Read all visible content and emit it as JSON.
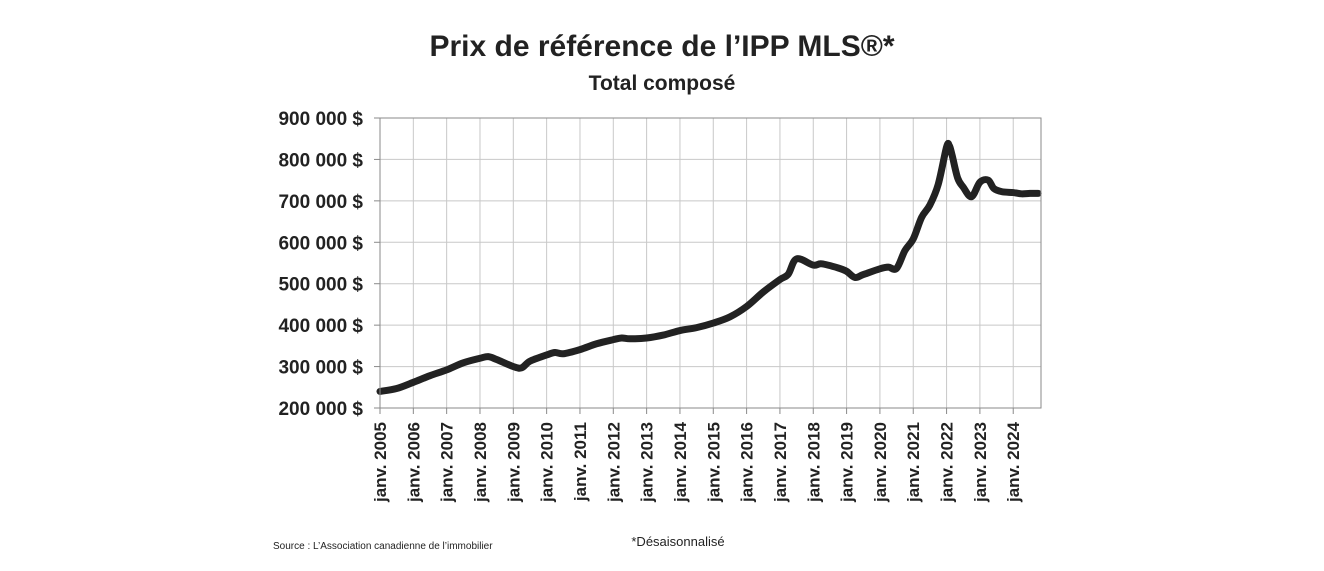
{
  "chart_data": {
    "type": "line",
    "title": "Prix de référence de l’IPP MLS®*",
    "subtitle": "Total composé",
    "xlabel": "",
    "ylabel": "",
    "ylim": [
      200000,
      900000
    ],
    "y_ticks": [
      200000,
      300000,
      400000,
      500000,
      600000,
      700000,
      800000,
      900000
    ],
    "y_tick_labels": [
      "200 000 $",
      "300 000 $",
      "400 000 $",
      "500 000 $",
      "600 000 $",
      "700 000 $",
      "800 000 $",
      "900 000 $"
    ],
    "x_range": [
      "2005-01",
      "2024-10"
    ],
    "x_ticks": [
      "2005-01",
      "2006-01",
      "2007-01",
      "2008-01",
      "2009-01",
      "2010-01",
      "2011-01",
      "2012-01",
      "2013-01",
      "2014-01",
      "2015-01",
      "2016-01",
      "2017-01",
      "2018-01",
      "2019-01",
      "2020-01",
      "2021-01",
      "2022-01",
      "2023-01",
      "2024-01"
    ],
    "x_tick_labels": [
      "janv. 2005",
      "janv. 2006",
      "janv. 2007",
      "janv. 2008",
      "janv. 2009",
      "janv. 2010",
      "janv. 2011",
      "janv. 2012",
      "janv. 2013",
      "janv. 2014",
      "janv. 2015",
      "janv. 2016",
      "janv. 2017",
      "janv. 2018",
      "janv. 2019",
      "janv. 2020",
      "janv. 2021",
      "janv. 2022",
      "janv. 2023",
      "janv. 2024"
    ],
    "grid": true,
    "series": [
      {
        "name": "",
        "color": "#222222",
        "x": [
          "2005-01",
          "2005-07",
          "2006-01",
          "2006-07",
          "2007-01",
          "2007-07",
          "2008-01",
          "2008-04",
          "2008-07",
          "2009-01",
          "2009-04",
          "2009-07",
          "2010-01",
          "2010-04",
          "2010-07",
          "2011-01",
          "2011-07",
          "2012-01",
          "2012-04",
          "2012-07",
          "2013-01",
          "2013-07",
          "2014-01",
          "2014-07",
          "2015-01",
          "2015-07",
          "2016-01",
          "2016-07",
          "2017-01",
          "2017-04",
          "2017-07",
          "2018-01",
          "2018-04",
          "2018-10",
          "2019-01",
          "2019-04",
          "2019-07",
          "2020-01",
          "2020-04",
          "2020-07",
          "2020-10",
          "2021-01",
          "2021-04",
          "2021-07",
          "2021-10",
          "2022-01",
          "2022-02",
          "2022-03",
          "2022-05",
          "2022-07",
          "2022-10",
          "2023-01",
          "2023-04",
          "2023-06",
          "2023-09",
          "2024-01",
          "2024-04",
          "2024-07",
          "2024-10"
        ],
        "values": [
          240000,
          247000,
          262000,
          278000,
          292000,
          309000,
          320000,
          324000,
          317000,
          300000,
          297000,
          313000,
          328000,
          334000,
          331000,
          341000,
          355000,
          365000,
          369000,
          367000,
          369000,
          376000,
          387000,
          394000,
          405000,
          420000,
          445000,
          480000,
          510000,
          523000,
          560000,
          545000,
          548000,
          538000,
          530000,
          515000,
          522000,
          536000,
          540000,
          537000,
          580000,
          608000,
          660000,
          690000,
          740000,
          830000,
          833000,
          810000,
          755000,
          733000,
          710000,
          745000,
          750000,
          730000,
          722000,
          720000,
          717000,
          718000,
          718000
        ]
      }
    ]
  },
  "footer": {
    "source": "Source : L’Association canadienne de l’immobilier",
    "note": "*Désaisonnalisé"
  }
}
